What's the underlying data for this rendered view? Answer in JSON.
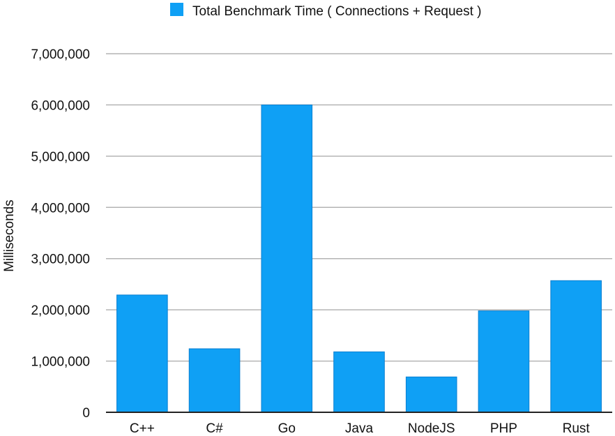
{
  "chart_data": {
    "type": "bar",
    "categories": [
      "C++",
      "C#",
      "Go",
      "Java",
      "NodeJS",
      "PHP",
      "Rust"
    ],
    "series": [
      {
        "name": "Total Benchmark Time ( Connections + Request )",
        "color": "#0fa0f5",
        "values": [
          2290000,
          1240000,
          6000000,
          1180000,
          690000,
          1980000,
          2570000
        ]
      }
    ],
    "xlabel": "",
    "ylabel": "Milliseconds",
    "ylim": [
      0,
      7000000
    ],
    "yticks": [
      0,
      1000000,
      2000000,
      3000000,
      4000000,
      5000000,
      6000000,
      7000000
    ],
    "ytick_labels": [
      "0",
      "1,000,000",
      "2,000,000",
      "3,000,000",
      "4,000,000",
      "5,000,000",
      "6,000,000",
      "7,000,000"
    ],
    "grid": true,
    "legend_position": "top-center"
  }
}
